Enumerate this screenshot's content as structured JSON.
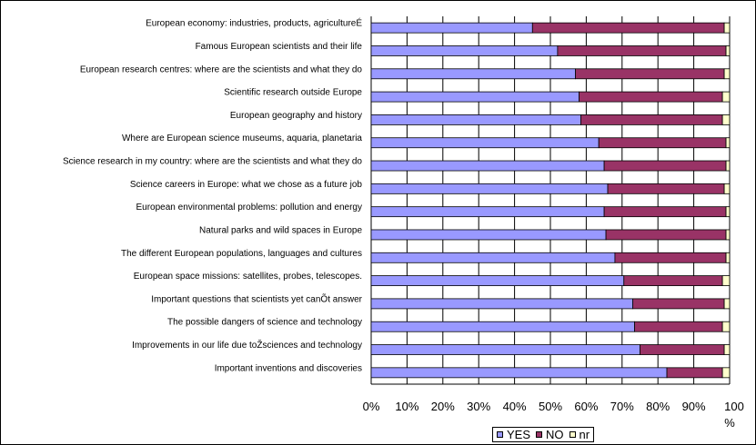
{
  "chart_data": {
    "type": "bar",
    "stacked": true,
    "orientation": "horizontal",
    "percent_scale": true,
    "categories": [
      "European economy: industries, products, agricultureÉ",
      "Famous European scientists and their life",
      "European research centres: where are the scientists and what they do",
      "Scientific research outside Europe",
      "European geography and history",
      "Where are European science museums, aquaria, planetaria",
      "Science research in my country: where are the scientists and what they do",
      "Science careers in Europe: what we chose as a future job",
      "European environmental problems: pollution and energy",
      "Natural parks and wild spaces in Europe",
      "The different European populations, languages and cultures",
      "European space missions: satellites, probes, telescopes.",
      "Important questions that scientists yet canÕt answer",
      "The possible dangers of science and technology",
      "Improvements in our life due toŽsciences and technology",
      "Important inventions and discoveries"
    ],
    "series": [
      {
        "name": "YES",
        "color": "#9999ff",
        "values": [
          45,
          52,
          57,
          58,
          58.5,
          63.5,
          65,
          66,
          65,
          65.5,
          68,
          70.5,
          73,
          73.5,
          75,
          82.5
        ]
      },
      {
        "name": "NO",
        "color": "#993366",
        "values": [
          53.5,
          47,
          41.5,
          40,
          39.5,
          35.5,
          34,
          32.5,
          34,
          33.5,
          31,
          27.5,
          25.5,
          24.5,
          23.5,
          15.5
        ]
      },
      {
        "name": "nr",
        "color": "#ffffcc",
        "values": [
          1.5,
          1,
          1.5,
          2,
          2,
          1,
          1,
          1.5,
          1,
          1,
          1,
          2,
          1.5,
          2,
          1.5,
          2
        ]
      }
    ],
    "x_ticks": [
      "0%",
      "10%",
      "20%",
      "30%",
      "40%",
      "50%",
      "60%",
      "70%",
      "80%",
      "90%",
      "100",
      "%"
    ],
    "xlim": [
      0,
      100
    ],
    "grid": true,
    "legend_position": "bottom"
  }
}
